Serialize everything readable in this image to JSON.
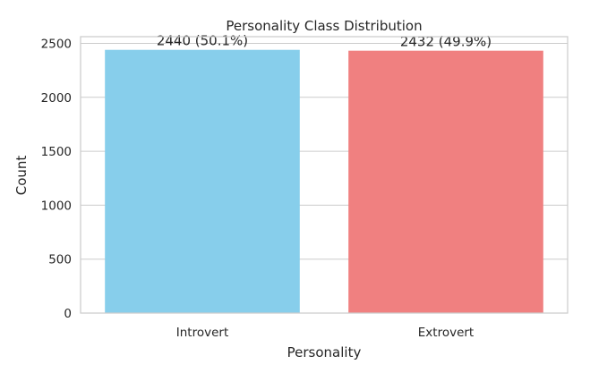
{
  "chart_data": {
    "type": "bar",
    "title": "Personality Class Distribution",
    "xlabel": "Personality",
    "ylabel": "Count",
    "categories": [
      "Introvert",
      "Extrovert"
    ],
    "values": [
      2440,
      2432
    ],
    "data_labels": [
      "2440 (50.1%)",
      "2432 (49.9%)"
    ],
    "colors": [
      "#87ceeb",
      "#f08080"
    ],
    "ylim": [
      0,
      2562
    ],
    "yticks": [
      0,
      500,
      1000,
      1500,
      2000,
      2500
    ],
    "ytick_labels": [
      "0",
      "500",
      "1000",
      "1500",
      "2000",
      "2500"
    ],
    "grid": "horizontal",
    "legend": "none"
  }
}
